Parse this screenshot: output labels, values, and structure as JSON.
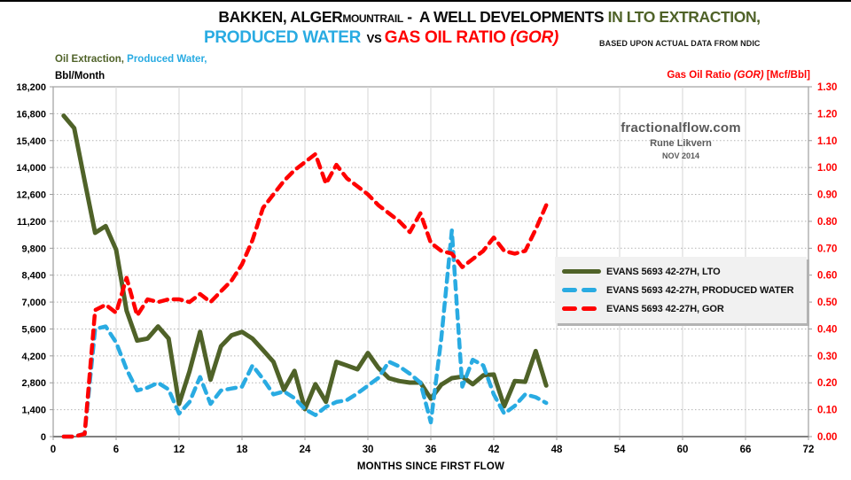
{
  "title": {
    "line1_main": "BAKKEN, ALGER",
    "line1_county": "MOUNTRAIL",
    "line1_rest": " -  A WELL DEVELOPMENTS ",
    "line1_lto": "IN LTO EXTRACTION,",
    "line2_water": "PRODUCED WATER",
    "line2_vs": "  VS ",
    "line2_gor": "GAS OIL RATIO ",
    "line2_gor_paren": "(GOR)",
    "note": "BASED UPON ACTUAL DATA FROM NDIC"
  },
  "axis_left": {
    "oil": "Oil Extraction,",
    "water": " Produced Water,",
    "unit": "Bbl/Month"
  },
  "axis_right": {
    "label": "Gas Oil Ratio ",
    "gor": "(GOR)",
    "unit": " [Mcf/Bbl]"
  },
  "watermark": {
    "site": "fractionalflow.com",
    "author": "Rune Likvern",
    "date": "NOV 2014"
  },
  "colors": {
    "lto": "#4F6228",
    "water": "#29ABE2",
    "gor": "#FF0000",
    "grid_v": "#D6D6D6",
    "grid_h": "#B3B3B3",
    "plot_border": "#A6A6A6",
    "axis": "#808080",
    "watermark_gray": "#595959"
  },
  "chart_data": {
    "type": "line",
    "title": "BAKKEN, ALGERMOUNTRAIL -  A WELL DEVELOPMENTS IN LTO EXTRACTION, PRODUCED WATER VS GAS OIL RATIO (GOR)",
    "subtitle": "BASED UPON ACTUAL DATA FROM NDIC",
    "xlabel": "MONTHS SINCE FIRST FLOW",
    "ylabel_left": "Oil Extraction, Produced Water, Bbl/Month",
    "ylabel_right": "Gas Oil Ratio (GOR) [Mcf/Bbl]",
    "x_range": [
      0,
      72
    ],
    "x_tick_step": 6,
    "y_left_range": [
      0,
      18200
    ],
    "y_left_tick_step": 1400,
    "y_right_range": [
      0,
      1.3
    ],
    "y_right_tick_step": 0.1,
    "grid": true,
    "legend_position": "middle-right",
    "months": [
      1,
      2,
      3,
      4,
      5,
      6,
      7,
      8,
      9,
      10,
      11,
      12,
      13,
      14,
      15,
      16,
      17,
      18,
      19,
      20,
      21,
      22,
      23,
      24,
      25,
      26,
      27,
      28,
      29,
      30,
      31,
      32,
      33,
      34,
      35,
      36,
      37,
      38,
      39,
      40,
      41,
      42,
      43,
      44,
      45,
      46,
      47
    ],
    "series": [
      {
        "name": "EVANS 5693 42-27H, LTO",
        "axis": "left",
        "color": "#4F6228",
        "style": "solid",
        "values": [
          16700,
          16050,
          13300,
          10600,
          10950,
          9720,
          6550,
          5000,
          5100,
          5730,
          5100,
          1700,
          3400,
          5450,
          2960,
          4700,
          5270,
          5450,
          5100,
          4500,
          3890,
          2430,
          3420,
          1430,
          2730,
          1810,
          3890,
          3700,
          3500,
          4350,
          3580,
          3040,
          2890,
          2810,
          2810,
          1970,
          2700,
          3040,
          3120,
          2730,
          3190,
          3230,
          1580,
          2890,
          2850,
          4450,
          2660
        ]
      },
      {
        "name": "EVANS 5693 42-27H, PRODUCED WATER",
        "axis": "left",
        "color": "#29ABE2",
        "style": "dashed",
        "values": [
          0,
          0,
          150,
          5600,
          5730,
          4900,
          3500,
          2400,
          2550,
          2800,
          2450,
          1200,
          1800,
          3100,
          1700,
          2400,
          2500,
          2600,
          3700,
          3000,
          2200,
          2350,
          2000,
          1430,
          1120,
          1550,
          1800,
          1900,
          2250,
          2650,
          3050,
          3900,
          3650,
          3270,
          2810,
          740,
          5100,
          10720,
          2600,
          4000,
          3700,
          2200,
          1200,
          1600,
          2200,
          2050,
          1750
        ]
      },
      {
        "name": "EVANS 5693 42-27H, GOR",
        "axis": "right",
        "color": "#FF0000",
        "style": "dashed",
        "values": [
          0,
          0,
          0.01,
          0.47,
          0.49,
          0.46,
          0.59,
          0.45,
          0.51,
          0.5,
          0.51,
          0.51,
          0.5,
          0.53,
          0.5,
          0.54,
          0.58,
          0.64,
          0.73,
          0.85,
          0.9,
          0.95,
          0.99,
          1.02,
          1.05,
          0.94,
          1.01,
          0.96,
          0.93,
          0.9,
          0.86,
          0.83,
          0.8,
          0.76,
          0.83,
          0.72,
          0.69,
          0.68,
          0.63,
          0.66,
          0.69,
          0.74,
          0.69,
          0.68,
          0.69,
          0.77,
          0.86
        ]
      }
    ]
  }
}
